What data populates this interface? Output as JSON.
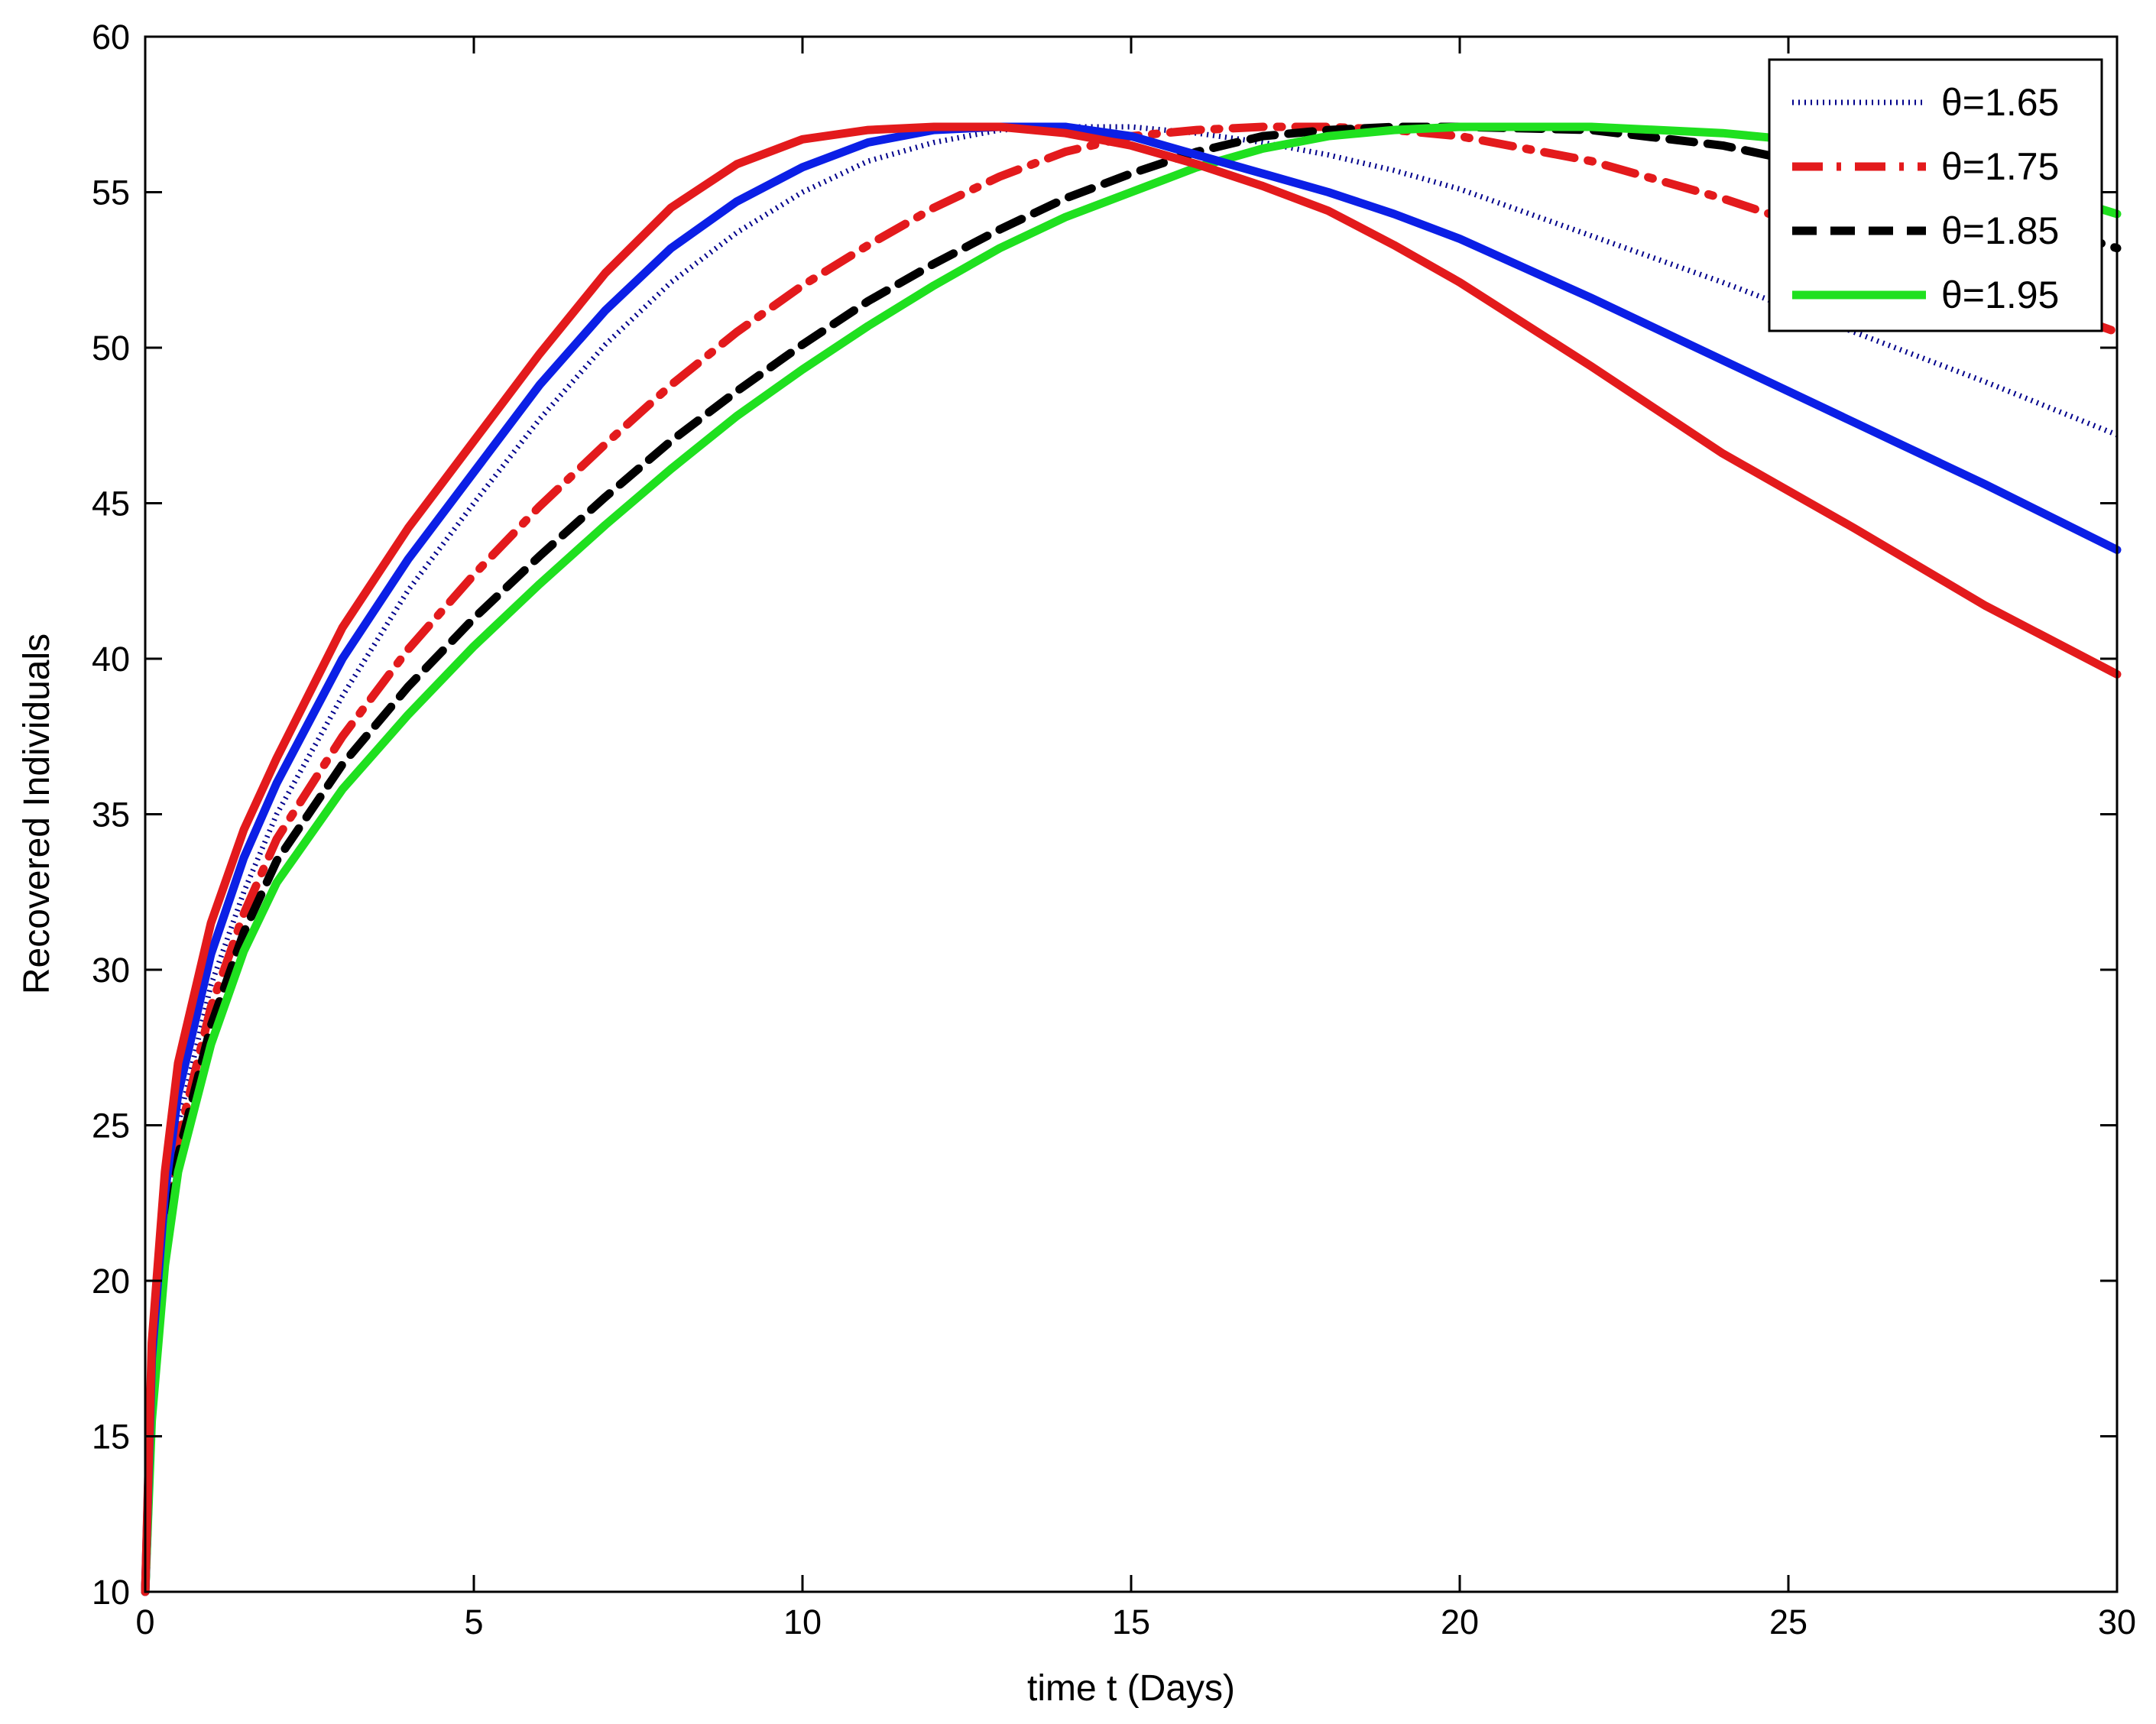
{
  "chart_data": {
    "type": "line",
    "title": "",
    "xlabel": "time t (Days)",
    "ylabel": "Recovered Individuals",
    "xlim": [
      0,
      30
    ],
    "ylim": [
      10,
      60
    ],
    "xticks": [
      0,
      5,
      10,
      15,
      20,
      25,
      30
    ],
    "yticks": [
      10,
      15,
      20,
      25,
      30,
      35,
      40,
      45,
      50,
      55,
      60
    ],
    "grid": false,
    "legend_position": "top-right",
    "legend": [
      {
        "label": "θ=1.65",
        "color": "#00008b",
        "style": "dotted"
      },
      {
        "label": "θ=1.75",
        "color": "#e31a1c",
        "style": "dashdot"
      },
      {
        "label": "θ=1.85",
        "color": "#000000",
        "style": "dashed"
      },
      {
        "label": "θ=1.95",
        "color": "#1fe01f",
        "style": "solid"
      }
    ],
    "series": [
      {
        "name": "θ=1.65",
        "color": "#00008b",
        "style": "dotted",
        "x": [
          0,
          0.1,
          0.3,
          0.5,
          1,
          1.5,
          2,
          3,
          4,
          5,
          6,
          7,
          8,
          9,
          10,
          11,
          12,
          13,
          14,
          15,
          16,
          17,
          18,
          19,
          20,
          22,
          24,
          26,
          28,
          30
        ],
        "y": [
          10,
          17,
          22,
          25,
          29.5,
          32.5,
          35,
          38.8,
          42.2,
          45,
          47.7,
          50.1,
          52.1,
          53.7,
          55,
          56,
          56.6,
          57,
          57.1,
          57.1,
          56.9,
          56.6,
          56.2,
          55.7,
          55.1,
          53.6,
          52.1,
          50.5,
          48.9,
          47.2
        ]
      },
      {
        "name": "θ=1.75",
        "color": "#e31a1c",
        "style": "dashdot",
        "x": [
          0,
          0.1,
          0.3,
          0.5,
          1,
          1.5,
          2,
          3,
          4,
          5,
          6,
          7,
          8,
          9,
          10,
          11,
          12,
          13,
          14,
          15,
          16,
          17,
          18,
          19,
          20,
          22,
          24,
          26,
          28,
          30
        ],
        "y": [
          10,
          16.5,
          21.5,
          24.5,
          28.8,
          31.8,
          34.2,
          37.5,
          40.3,
          42.7,
          44.9,
          46.9,
          48.8,
          50.5,
          52,
          53.3,
          54.5,
          55.5,
          56.3,
          56.8,
          57,
          57.1,
          57.1,
          57,
          56.8,
          56,
          54.8,
          53.4,
          52,
          50.5
        ]
      },
      {
        "name": "θ=1.85",
        "color": "#000000",
        "style": "dashed",
        "x": [
          0,
          0.1,
          0.3,
          0.5,
          1,
          1.5,
          2,
          3,
          4,
          5,
          6,
          7,
          8,
          9,
          10,
          11,
          12,
          13,
          14,
          15,
          16,
          17,
          18,
          19,
          20,
          22,
          24,
          26,
          28,
          30
        ],
        "y": [
          10,
          16,
          21,
          24,
          28.2,
          31.2,
          33.5,
          36.6,
          39.1,
          41.3,
          43.3,
          45.2,
          47,
          48.6,
          50.1,
          51.5,
          52.7,
          53.8,
          54.8,
          55.6,
          56.3,
          56.8,
          57,
          57.1,
          57.1,
          57,
          56.5,
          55.6,
          54.5,
          53.2
        ]
      },
      {
        "name": "θ=1.95",
        "color": "#1fe01f",
        "style": "solid",
        "x": [
          0,
          0.1,
          0.3,
          0.5,
          1,
          1.5,
          2,
          3,
          4,
          5,
          6,
          7,
          8,
          9,
          10,
          11,
          12,
          13,
          14,
          15,
          16,
          17,
          18,
          19,
          20,
          22,
          24,
          26,
          28,
          30
        ],
        "y": [
          10,
          15.5,
          20.5,
          23.5,
          27.6,
          30.6,
          32.8,
          35.8,
          38.2,
          40.4,
          42.4,
          44.3,
          46.1,
          47.8,
          49.3,
          50.7,
          52,
          53.2,
          54.2,
          55,
          55.8,
          56.4,
          56.8,
          57,
          57.1,
          57.1,
          56.9,
          56.5,
          55.6,
          54.3
        ]
      },
      {
        "name": "",
        "color": "#0b1fe6",
        "style": "solid",
        "x": [
          0,
          0.1,
          0.3,
          0.5,
          1,
          1.5,
          2,
          3,
          4,
          5,
          6,
          7,
          8,
          9,
          10,
          11,
          12,
          13,
          14,
          15,
          16,
          17,
          18,
          19,
          20,
          22,
          24,
          26,
          28,
          30
        ],
        "y": [
          10,
          17.5,
          22.8,
          26,
          30.5,
          33.6,
          36,
          40,
          43.2,
          46,
          48.8,
          51.2,
          53.2,
          54.7,
          55.8,
          56.6,
          57,
          57.1,
          57.1,
          56.8,
          56.2,
          55.6,
          55,
          54.3,
          53.5,
          51.6,
          49.6,
          47.6,
          45.6,
          43.5
        ]
      },
      {
        "name": "",
        "color": "#e31a1c",
        "style": "solid",
        "x": [
          0,
          0.1,
          0.3,
          0.5,
          1,
          1.5,
          2,
          3,
          4,
          5,
          6,
          7,
          8,
          9,
          10,
          11,
          12,
          13,
          14,
          15,
          16,
          17,
          18,
          19,
          20,
          22,
          24,
          26,
          28,
          30
        ],
        "y": [
          10,
          18,
          23.5,
          27,
          31.5,
          34.5,
          36.8,
          41,
          44.2,
          47,
          49.8,
          52.4,
          54.5,
          55.9,
          56.7,
          57,
          57.1,
          57.1,
          56.9,
          56.5,
          55.9,
          55.2,
          54.4,
          53.3,
          52.1,
          49.4,
          46.6,
          44.2,
          41.7,
          39.5
        ]
      }
    ]
  }
}
